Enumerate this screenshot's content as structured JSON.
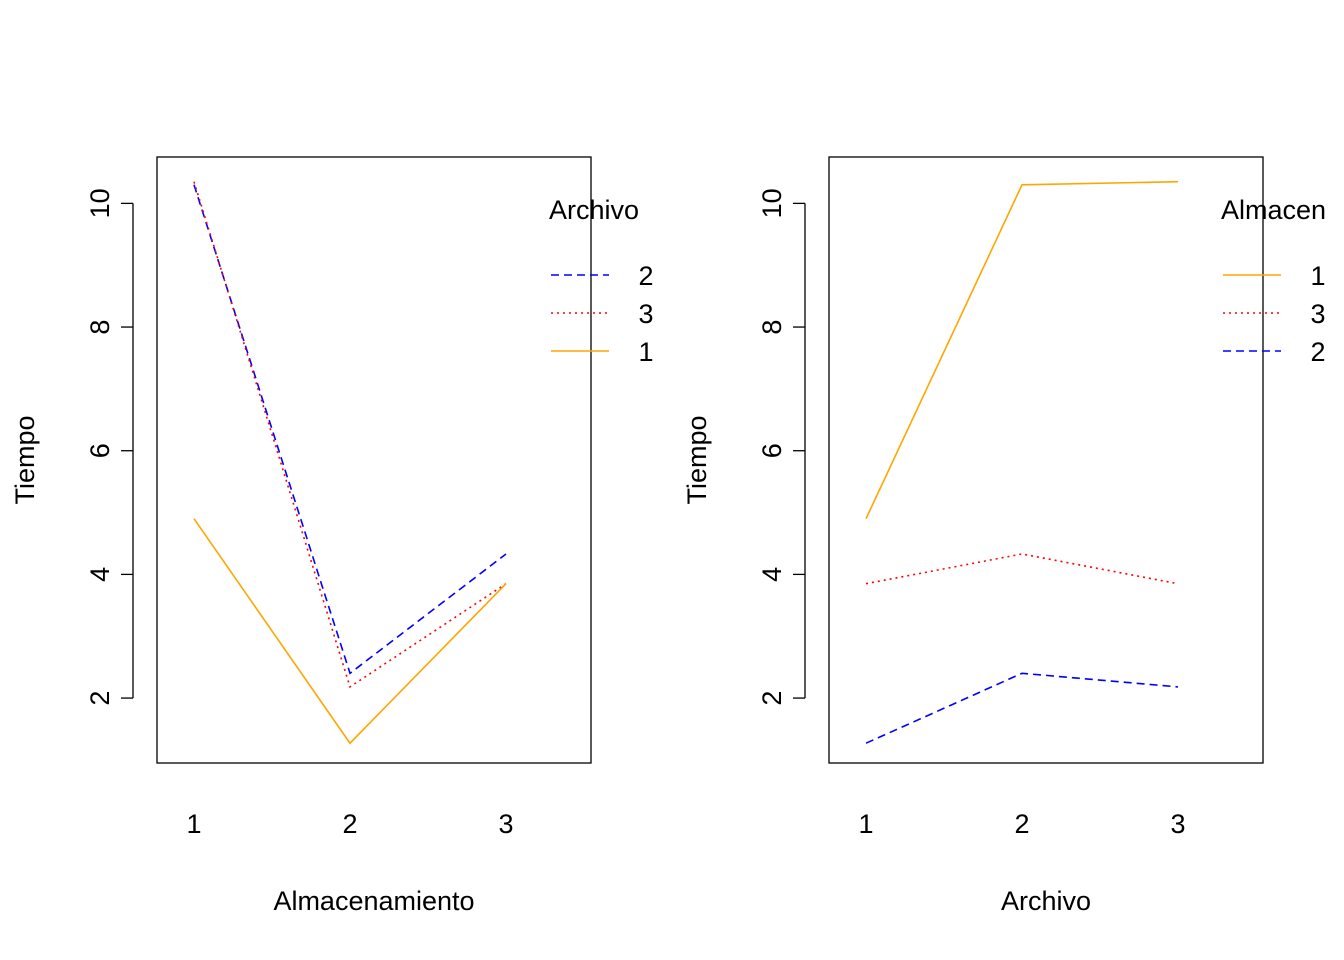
{
  "chart_data": [
    {
      "type": "line",
      "xlabel": "Almacenamiento",
      "ylabel": "Tiempo",
      "x": [
        "1",
        "2",
        "3"
      ],
      "y_ticks": [
        "2",
        "4",
        "6",
        "8",
        "10"
      ],
      "ylim": [
        0.95,
        10.75
      ],
      "grid": false,
      "legend_title": "Archivo",
      "legend_position": "top-right",
      "series": [
        {
          "name": "2",
          "values": [
            10.3,
            2.4,
            4.33
          ],
          "color": "#0000ff",
          "linestyle": "dashed"
        },
        {
          "name": "3",
          "values": [
            10.35,
            2.18,
            3.85
          ],
          "color": "#ff0000",
          "linestyle": "dotted"
        },
        {
          "name": "1",
          "values": [
            4.9,
            1.27,
            3.85
          ],
          "color": "#ffa500",
          "linestyle": "solid"
        }
      ]
    },
    {
      "type": "line",
      "xlabel": "Archivo",
      "ylabel": "Tiempo",
      "x": [
        "1",
        "2",
        "3"
      ],
      "y_ticks": [
        "2",
        "4",
        "6",
        "8",
        "10"
      ],
      "ylim": [
        0.95,
        10.75
      ],
      "grid": false,
      "legend_title": "Almacen",
      "legend_position": "top-right",
      "series": [
        {
          "name": "1",
          "values": [
            4.9,
            10.3,
            10.35
          ],
          "color": "#ffa500",
          "linestyle": "solid"
        },
        {
          "name": "3",
          "values": [
            3.85,
            4.33,
            3.85
          ],
          "color": "#ff0000",
          "linestyle": "dotted"
        },
        {
          "name": "2",
          "values": [
            1.27,
            2.4,
            2.18
          ],
          "color": "#0000ff",
          "linestyle": "dashed"
        }
      ]
    }
  ]
}
